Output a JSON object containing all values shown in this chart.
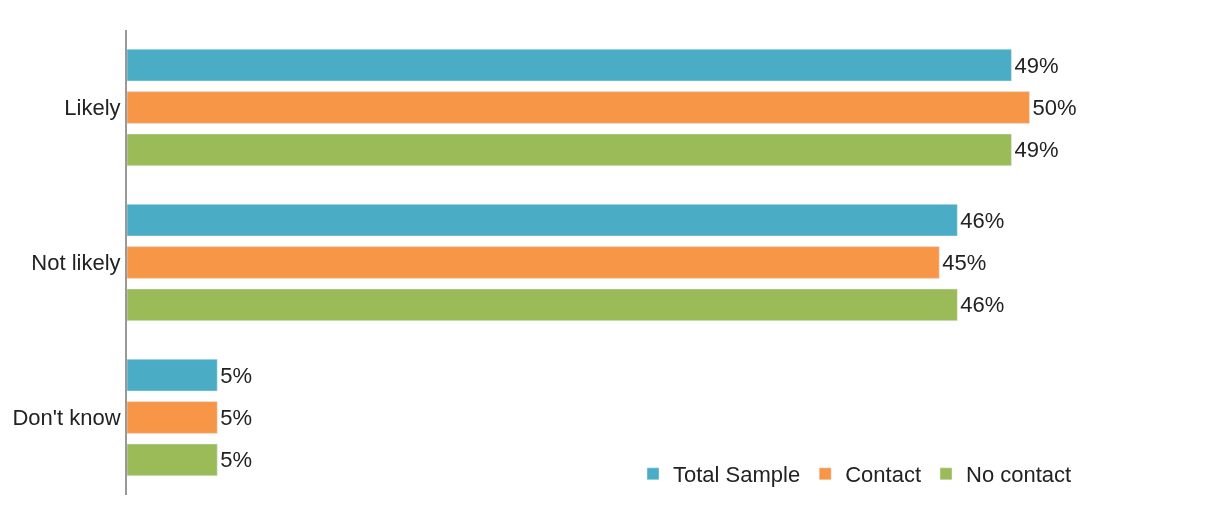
{
  "chart_data": {
    "type": "bar",
    "orientation": "horizontal",
    "categories": [
      "Likely",
      "Not likely",
      "Don't know"
    ],
    "series": [
      {
        "name": "Total Sample",
        "color": "#4bacc6",
        "values": [
          49,
          46,
          5
        ],
        "value_labels": [
          "49%",
          "46%",
          "5%"
        ]
      },
      {
        "name": "Contact",
        "color": "#f79646",
        "values": [
          50,
          45,
          5
        ],
        "value_labels": [
          "50%",
          "45%",
          "5%"
        ]
      },
      {
        "name": "No contact",
        "color": "#9bbb59",
        "values": [
          49,
          46,
          5
        ],
        "value_labels": [
          "49%",
          "46%",
          "5%"
        ]
      }
    ],
    "legend": "bottom right"
  }
}
